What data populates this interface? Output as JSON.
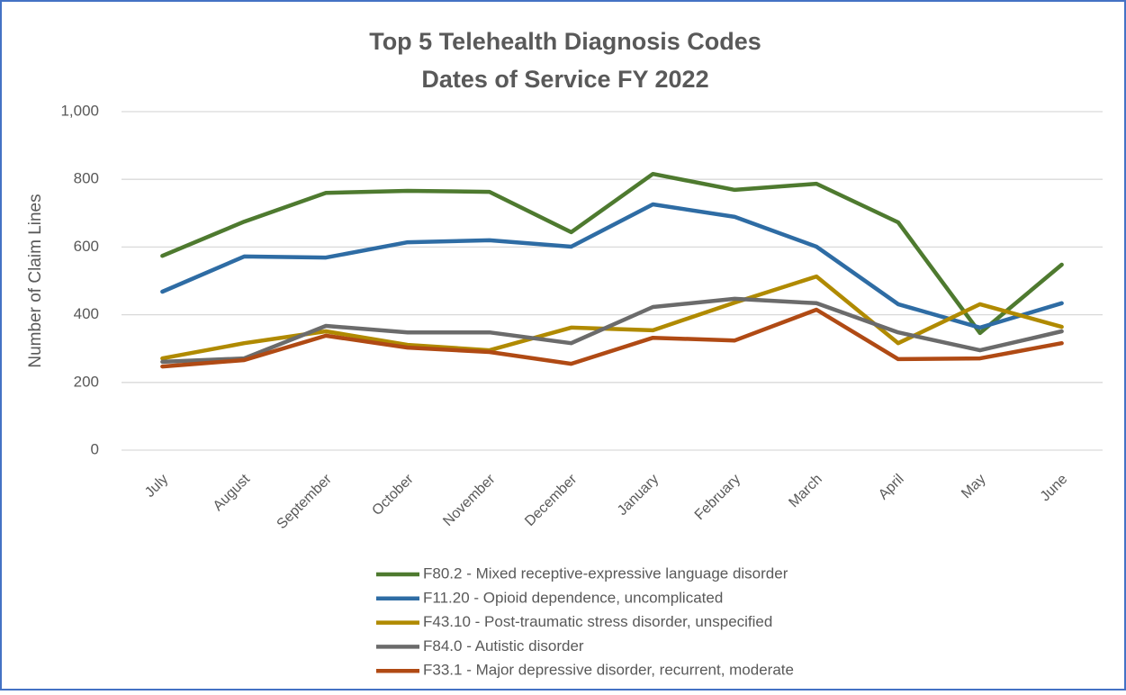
{
  "chart_data": {
    "type": "line",
    "title": "Top 5 Telehealth Diagnosis Codes",
    "subtitle": "Dates of Service FY 2022",
    "y_label": "Number of Claim Lines",
    "categories": [
      "July",
      "August",
      "September",
      "October",
      "November",
      "December",
      "January",
      "February",
      "March",
      "April",
      "May",
      "June"
    ],
    "series": [
      {
        "name": "F80.2 - Mixed receptive-expressive language disorder",
        "color": "#4e7a2f",
        "values": [
          574,
          675,
          760,
          766,
          763,
          644,
          816,
          769,
          787,
          673,
          346,
          548
        ]
      },
      {
        "name": "F11.20 - Opioid dependence, uncomplicated",
        "color": "#2e6ca4",
        "values": [
          468,
          572,
          569,
          614,
          620,
          601,
          726,
          689,
          601,
          431,
          362,
          434
        ]
      },
      {
        "name": "F43.10 - Post-traumatic stress disorder, unspecified",
        "color": "#b08a00",
        "values": [
          271,
          316,
          351,
          311,
          295,
          362,
          354,
          436,
          513,
          316,
          431,
          364
        ]
      },
      {
        "name": "F84.0 - Autistic disorder",
        "color": "#6b6b6b",
        "values": [
          261,
          271,
          367,
          348,
          348,
          316,
          423,
          447,
          434,
          348,
          295,
          351
        ]
      },
      {
        "name": "F33.1 - Major depressive disorder, recurrent, moderate",
        "color": "#b04a14",
        "values": [
          247,
          266,
          338,
          303,
          290,
          255,
          332,
          324,
          415,
          269,
          271,
          316
        ]
      }
    ],
    "ylim": [
      0,
      1000
    ],
    "yticks": [
      0,
      200,
      400,
      600,
      800,
      {
        "value": 1000,
        "label": "1,000"
      }
    ],
    "grid": true,
    "legend": "bottom"
  }
}
